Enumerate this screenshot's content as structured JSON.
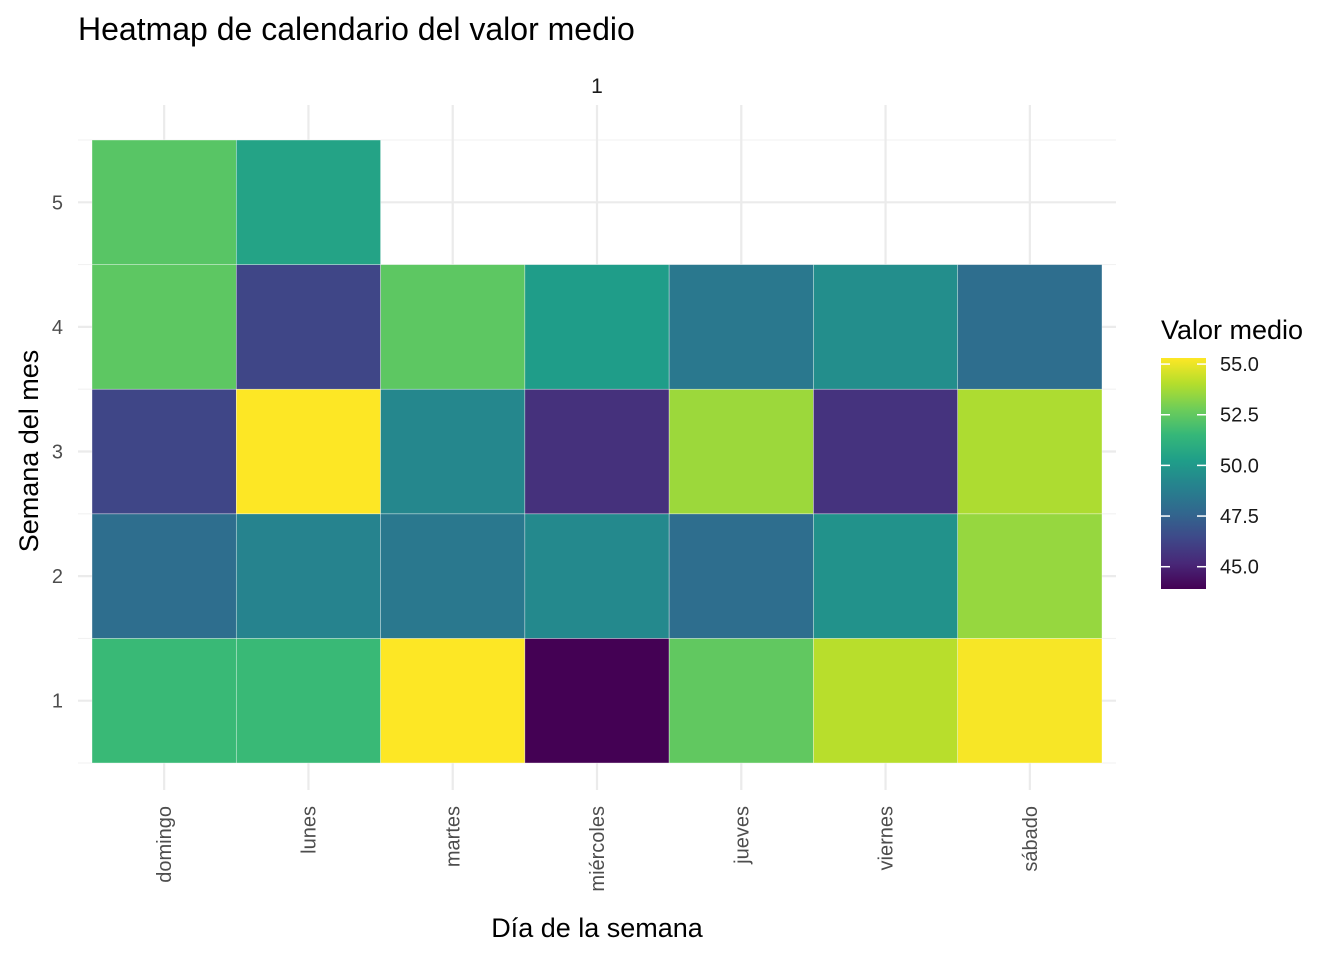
{
  "chart_data": {
    "type": "heatmap",
    "title": "Heatmap de calendario del valor medio",
    "facet_label": "1",
    "xlabel": "Día de la semana",
    "ylabel": "Semana del mes",
    "x_categories": [
      "domingo",
      "lunes",
      "martes",
      "miércoles",
      "jueves",
      "viernes",
      "sábado"
    ],
    "y_categories": [
      "1",
      "2",
      "3",
      "4",
      "5"
    ],
    "cells": [
      {
        "x": "domingo",
        "y": "1",
        "value": 51.6
      },
      {
        "x": "lunes",
        "y": "1",
        "value": 51.6
      },
      {
        "x": "martes",
        "y": "1",
        "value": 55.3
      },
      {
        "x": "miércoles",
        "y": "1",
        "value": 43.9
      },
      {
        "x": "jueves",
        "y": "1",
        "value": 52.5
      },
      {
        "x": "viernes",
        "y": "1",
        "value": 54.1
      },
      {
        "x": "sábado",
        "y": "1",
        "value": 55.2
      },
      {
        "x": "domingo",
        "y": "2",
        "value": 48.0
      },
      {
        "x": "lunes",
        "y": "2",
        "value": 49.0
      },
      {
        "x": "martes",
        "y": "2",
        "value": 48.5
      },
      {
        "x": "miércoles",
        "y": "2",
        "value": 49.3
      },
      {
        "x": "jueves",
        "y": "2",
        "value": 48.0
      },
      {
        "x": "viernes",
        "y": "2",
        "value": 49.7
      },
      {
        "x": "sábado",
        "y": "2",
        "value": 53.5
      },
      {
        "x": "domingo",
        "y": "3",
        "value": 46.3
      },
      {
        "x": "lunes",
        "y": "3",
        "value": 55.3
      },
      {
        "x": "martes",
        "y": "3",
        "value": 49.2
      },
      {
        "x": "miércoles",
        "y": "3",
        "value": 45.5
      },
      {
        "x": "jueves",
        "y": "3",
        "value": 53.6
      },
      {
        "x": "viernes",
        "y": "3",
        "value": 45.6
      },
      {
        "x": "sábado",
        "y": "3",
        "value": 53.9
      },
      {
        "x": "domingo",
        "y": "4",
        "value": 52.4
      },
      {
        "x": "lunes",
        "y": "4",
        "value": 46.3
      },
      {
        "x": "martes",
        "y": "4",
        "value": 52.4
      },
      {
        "x": "miércoles",
        "y": "4",
        "value": 50.2
      },
      {
        "x": "jueves",
        "y": "4",
        "value": 48.5
      },
      {
        "x": "viernes",
        "y": "4",
        "value": 49.5
      },
      {
        "x": "sábado",
        "y": "4",
        "value": 48.0
      },
      {
        "x": "domingo",
        "y": "5",
        "value": 52.3
      },
      {
        "x": "lunes",
        "y": "5",
        "value": 50.5
      }
    ],
    "color_scale": {
      "name": "viridis",
      "domain": [
        43.9,
        55.3
      ],
      "stops": [
        "#440154",
        "#482878",
        "#3E4989",
        "#31688E",
        "#26828E",
        "#1F9E89",
        "#35B779",
        "#6DCD59",
        "#B4DE2C",
        "#FDE725"
      ]
    },
    "legend": {
      "title": "Valor medio",
      "ticks": [
        {
          "value": 55.0,
          "label": "55.0"
        },
        {
          "value": 52.5,
          "label": "52.5"
        },
        {
          "value": 50.0,
          "label": "50.0"
        },
        {
          "value": 47.5,
          "label": "47.5"
        },
        {
          "value": 45.0,
          "label": "45.0"
        }
      ],
      "position": "right"
    },
    "grid": true
  }
}
